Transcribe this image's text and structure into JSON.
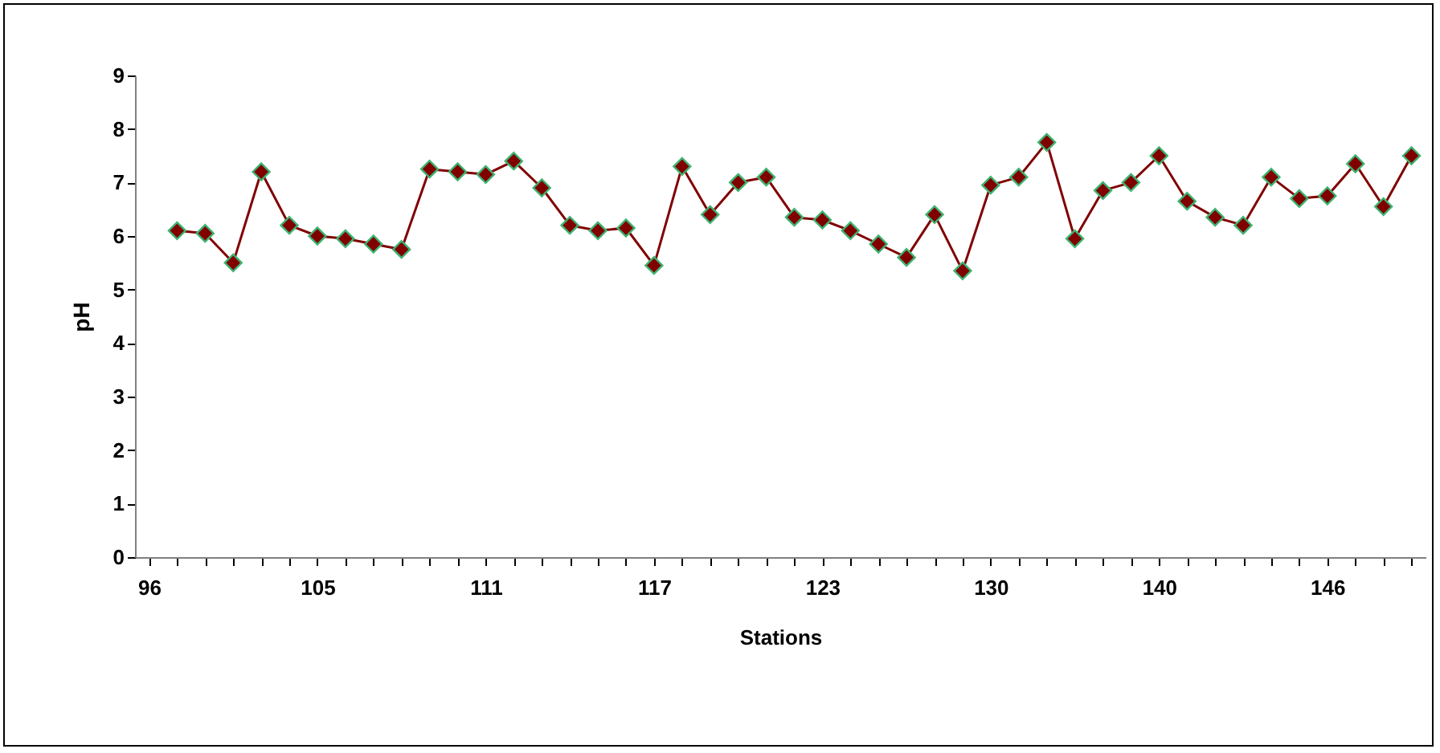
{
  "chart_data": {
    "type": "line",
    "xlabel": "Stations",
    "ylabel": "pH",
    "categories": [
      "96",
      null,
      null,
      null,
      null,
      null,
      "105",
      null,
      null,
      null,
      null,
      null,
      "111",
      null,
      null,
      null,
      null,
      null,
      "117",
      null,
      null,
      null,
      null,
      null,
      "123",
      null,
      null,
      null,
      null,
      null,
      "130",
      null,
      null,
      null,
      null,
      null,
      "140",
      null,
      null,
      null,
      null,
      null,
      "146",
      null,
      null,
      null
    ],
    "series": [
      {
        "color": "#800000",
        "values": [
          null,
          6.1,
          6.05,
          5.5,
          7.2,
          6.2,
          6.0,
          5.95,
          5.85,
          5.75,
          7.25,
          7.2,
          7.15,
          7.4,
          6.9,
          6.2,
          6.1,
          6.15,
          5.45,
          7.3,
          6.4,
          7.0,
          7.1,
          6.35,
          6.3,
          6.1,
          5.85,
          5.6,
          6.4,
          5.35,
          6.95,
          7.1,
          7.75,
          5.95,
          6.85,
          7.0,
          7.5,
          6.65,
          6.35,
          6.2,
          7.1,
          6.7,
          6.75,
          7.35,
          6.55,
          7.5
        ]
      }
    ],
    "ylim": [
      0,
      9
    ],
    "yticks": [
      0,
      1,
      2,
      3,
      4,
      5,
      6,
      7,
      8,
      9
    ],
    "grid": false,
    "marker": "diamond",
    "line_style": "solid"
  }
}
